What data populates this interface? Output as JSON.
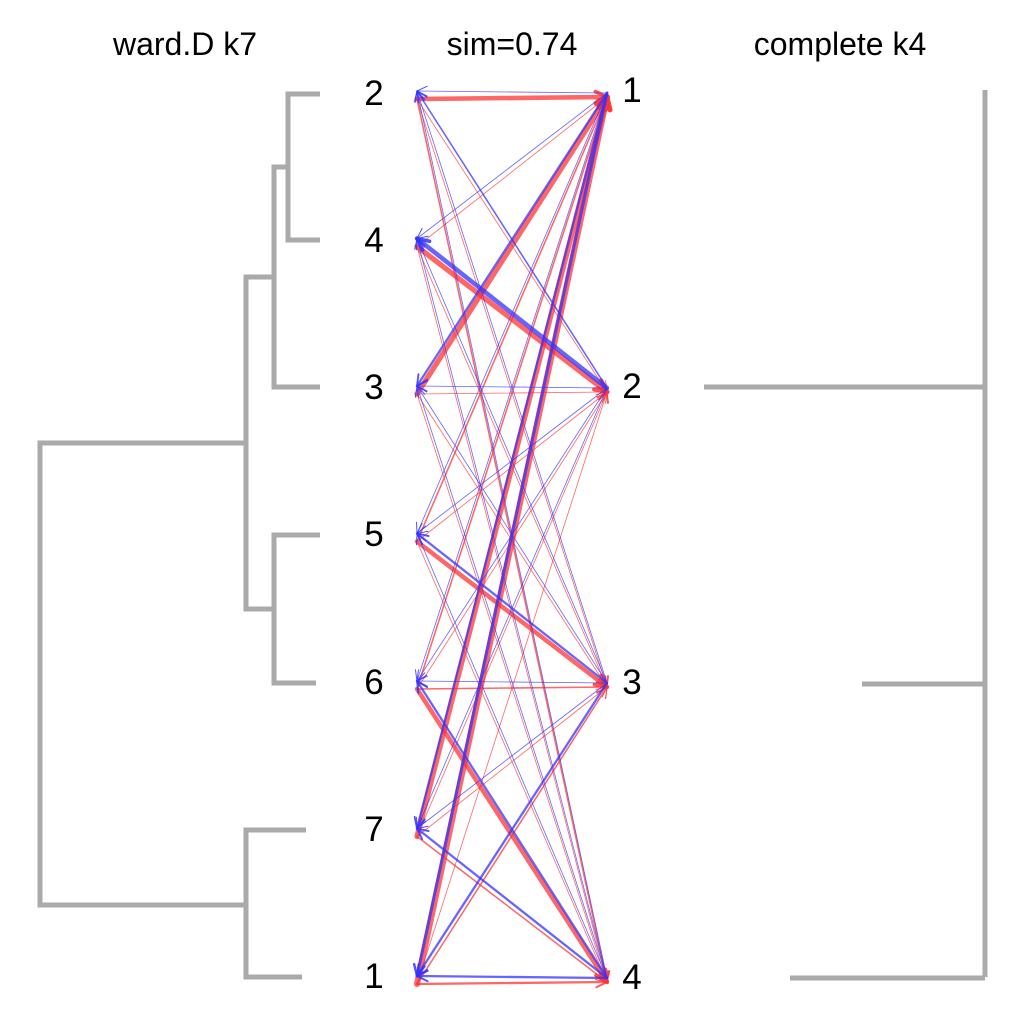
{
  "titles": {
    "left": "ward.D k7",
    "center": "sim=0.74",
    "right": "complete k4"
  },
  "colors": {
    "dendrogram": "#aaaaaa",
    "forward": "#ff3333",
    "backward": "#3333ff"
  },
  "left_labels": [
    "2",
    "4",
    "3",
    "5",
    "6",
    "7",
    "1"
  ],
  "right_labels": [
    "1",
    "2",
    "3",
    "4"
  ],
  "flows": [
    {
      "from": "2",
      "to": "1",
      "w": 6
    },
    {
      "from": "2",
      "to": "2",
      "w": 1
    },
    {
      "from": "2",
      "to": "3",
      "w": 1
    },
    {
      "from": "2",
      "to": "4",
      "w": 2
    },
    {
      "from": "4",
      "to": "1",
      "w": 1
    },
    {
      "from": "4",
      "to": "2",
      "w": 7
    },
    {
      "from": "4",
      "to": "3",
      "w": 1
    },
    {
      "from": "4",
      "to": "4",
      "w": 1
    },
    {
      "from": "3",
      "to": "1",
      "w": 7
    },
    {
      "from": "3",
      "to": "2",
      "w": 1
    },
    {
      "from": "3",
      "to": "3",
      "w": 1
    },
    {
      "from": "3",
      "to": "4",
      "w": 1
    },
    {
      "from": "5",
      "to": "1",
      "w": 2
    },
    {
      "from": "5",
      "to": "2",
      "w": 1
    },
    {
      "from": "5",
      "to": "3",
      "w": 6
    },
    {
      "from": "5",
      "to": "4",
      "w": 1
    },
    {
      "from": "6",
      "to": "1",
      "w": 2
    },
    {
      "from": "6",
      "to": "2",
      "w": 1
    },
    {
      "from": "6",
      "to": "3",
      "w": 2
    },
    {
      "from": "6",
      "to": "4",
      "w": 6
    },
    {
      "from": "7",
      "to": "1",
      "w": 7
    },
    {
      "from": "7",
      "to": "2",
      "w": 1
    },
    {
      "from": "7",
      "to": "3",
      "w": 1
    },
    {
      "from": "7",
      "to": "4",
      "w": 2
    },
    {
      "from": "1",
      "to": "1",
      "w": 8
    },
    {
      "from": "1",
      "to": "2",
      "w": 1
    },
    {
      "from": "1",
      "to": "3",
      "w": 2
    },
    {
      "from": "1",
      "to": "4",
      "w": 3
    }
  ],
  "back_flows": [
    {
      "from": "1",
      "to": "2",
      "w": 1
    },
    {
      "from": "1",
      "to": "4",
      "w": 1
    },
    {
      "from": "1",
      "to": "3",
      "w": 3
    },
    {
      "from": "1",
      "to": "5",
      "w": 1
    },
    {
      "from": "1",
      "to": "6",
      "w": 1
    },
    {
      "from": "1",
      "to": "7",
      "w": 3
    },
    {
      "from": "1",
      "to": "1",
      "w": 4
    },
    {
      "from": "2",
      "to": "2",
      "w": 2
    },
    {
      "from": "2",
      "to": "4",
      "w": 6
    },
    {
      "from": "2",
      "to": "3",
      "w": 1
    },
    {
      "from": "2",
      "to": "5",
      "w": 1
    },
    {
      "from": "2",
      "to": "6",
      "w": 1
    },
    {
      "from": "2",
      "to": "7",
      "w": 1
    },
    {
      "from": "3",
      "to": "2",
      "w": 1
    },
    {
      "from": "3",
      "to": "4",
      "w": 1
    },
    {
      "from": "3",
      "to": "3",
      "w": 1
    },
    {
      "from": "3",
      "to": "5",
      "w": 3
    },
    {
      "from": "3",
      "to": "6",
      "w": 1
    },
    {
      "from": "3",
      "to": "7",
      "w": 1
    },
    {
      "from": "3",
      "to": "1",
      "w": 3
    },
    {
      "from": "4",
      "to": "2",
      "w": 1
    },
    {
      "from": "4",
      "to": "4",
      "w": 1
    },
    {
      "from": "4",
      "to": "3",
      "w": 1
    },
    {
      "from": "4",
      "to": "5",
      "w": 1
    },
    {
      "from": "4",
      "to": "6",
      "w": 3
    },
    {
      "from": "4",
      "to": "7",
      "w": 3
    },
    {
      "from": "4",
      "to": "1",
      "w": 3
    }
  ]
}
